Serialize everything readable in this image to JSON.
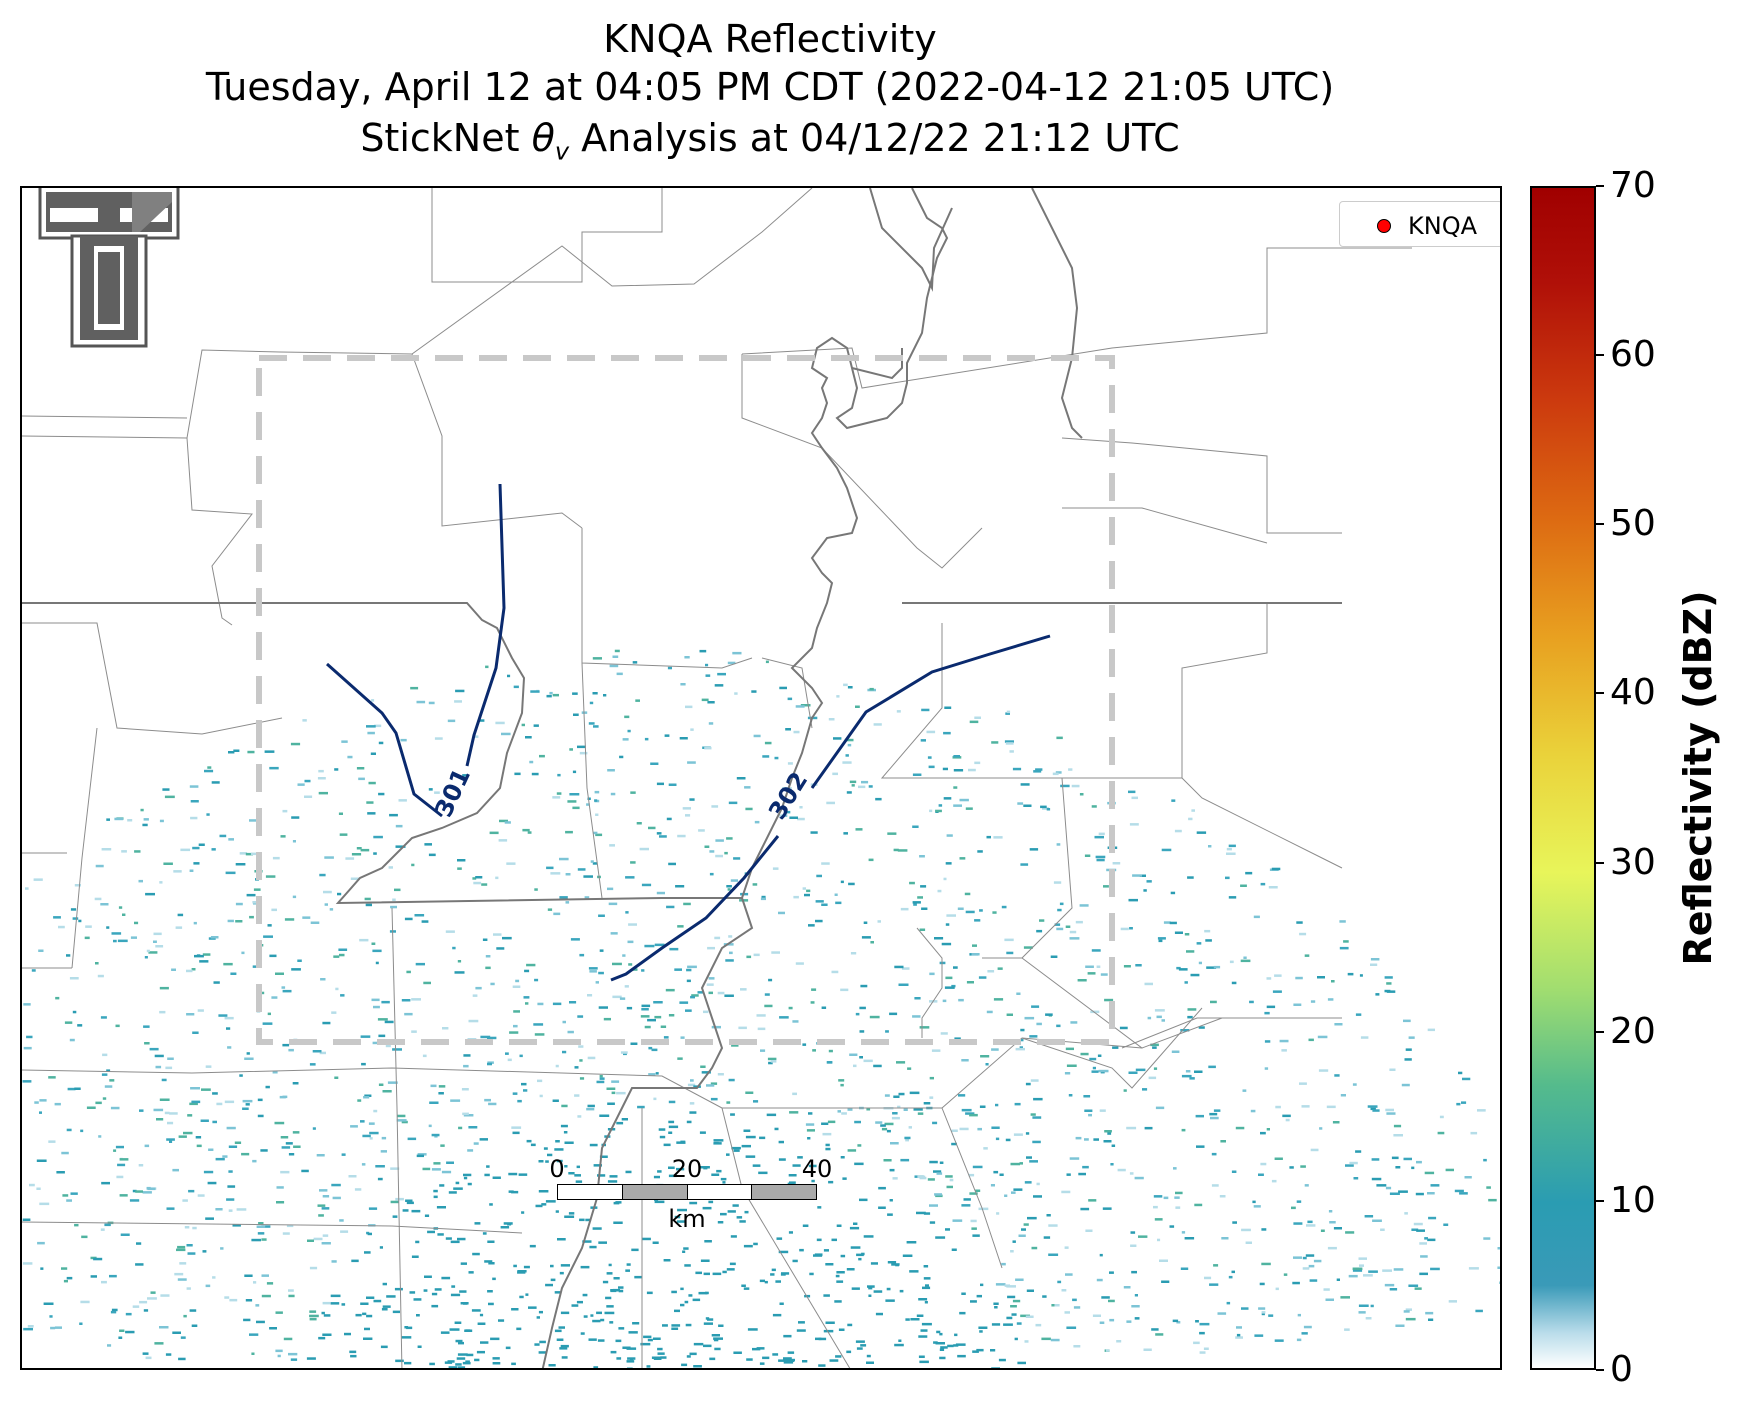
{
  "title": {
    "line1": "KNQA Reflectivity",
    "line2": "Tuesday, April 12 at 04:05 PM CDT (2022-04-12 21:05 UTC)",
    "line3_prefix": "StickNet ",
    "line3_var": "θ",
    "line3_sub": "v",
    "line3_suffix": " Analysis at 04/12/22 21:12 UTC"
  },
  "legend": {
    "label": "KNQA",
    "marker_color": "#ff0000"
  },
  "contours": [
    {
      "label": "301",
      "color": "#0a2a6e"
    },
    {
      "label": "302",
      "color": "#0a2a6e"
    }
  ],
  "colorbar": {
    "label": "Reflectivity (dBZ)",
    "min": 0,
    "max": 70,
    "ticks": [
      "0",
      "10",
      "20",
      "30",
      "40",
      "50",
      "60",
      "70"
    ]
  },
  "scalebar": {
    "ticks": [
      "0",
      "20",
      "40"
    ],
    "unit": "km"
  },
  "colors": {
    "radar_echo": "#2a9cb2",
    "analysis_box": "#c8c8c8",
    "county_lines": "#8c8c8c",
    "state_river_lines": "#777777"
  },
  "icons": {
    "logo": "texas-tech-double-t-logo"
  }
}
